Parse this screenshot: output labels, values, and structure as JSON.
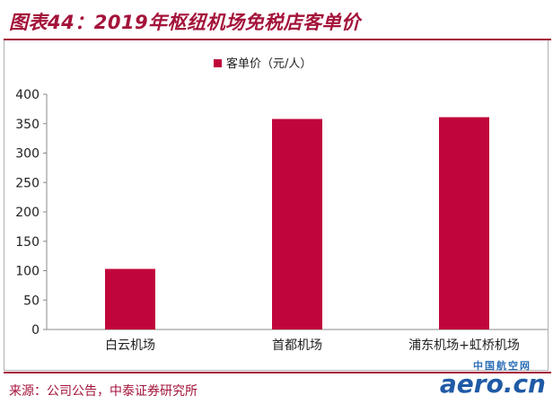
{
  "header": {
    "title": "图表44：2019年枢纽机场免税店客单价"
  },
  "footer": {
    "source": "来源：公司公告，中泰证券研究所"
  },
  "watermark": {
    "cn": "中国航空网",
    "en": "aero.cn"
  },
  "colors": {
    "accent": "#a4133a",
    "bar": "#c0053b"
  },
  "chart_data": {
    "type": "bar",
    "categories": [
      "白云机场",
      "首都机场",
      "浦东机场+虹桥机场"
    ],
    "series": [
      {
        "name": "客单价（元/人）",
        "values": [
          103,
          358,
          361
        ]
      }
    ],
    "ylim": [
      0,
      400
    ],
    "yticks": [
      0,
      50,
      100,
      150,
      200,
      250,
      300,
      350,
      400
    ],
    "grid": false,
    "legend_position": "top-center"
  }
}
